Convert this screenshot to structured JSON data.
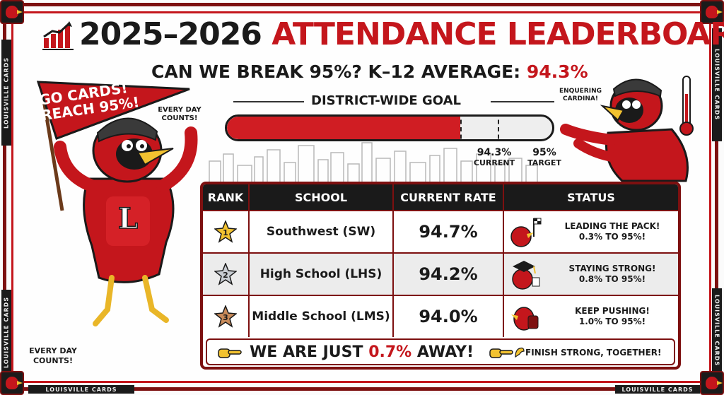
{
  "header": {
    "title_year": "2025–2026",
    "title_main": "ATTENDANCE LEADERBOARD",
    "subtitle_prefix": "CAN WE BREAK 95%? K–12 AVERAGE:",
    "subtitle_value": "94.3%"
  },
  "goal": {
    "title": "DISTRICT-WIDE GOAL",
    "current_value": "94.3%",
    "current_label": "CURRENT",
    "target_value": "95%",
    "target_label": "TARGET",
    "current_fraction": 0.943,
    "target_fraction": 0.95
  },
  "pennant": {
    "line1": "GO CARDS!",
    "line2": "REACH 95%!"
  },
  "bubbles": {
    "every_day_top": "EVERY DAY\nCOUNTS!",
    "every_day_bottom": "EVERY DAY\nCOUNTS!",
    "right_mascot": "ENQUERING\nCARDINA!"
  },
  "mascot": {
    "chest_letter": "L"
  },
  "brand": {
    "side_band": "LOUISVILLE CARDS"
  },
  "table": {
    "headers": [
      "RANK",
      "SCHOOL",
      "CURRENT RATE",
      "STATUS"
    ],
    "rows": [
      {
        "rank": "1",
        "school": "Southwest (SW)",
        "rate": "94.7%",
        "status_line1": "LEADING THE PACK!",
        "status_line2": "0.3% TO 95%!",
        "badge": "gold-star",
        "icon": "checkered-flag-cardinal-icon"
      },
      {
        "rank": "2",
        "school": "High School (LHS)",
        "rate": "94.2%",
        "status_line1": "STAYING STRONG!",
        "status_line2": "0.8% TO 95%!",
        "badge": "silver-star",
        "icon": "graduation-cardinal-icon"
      },
      {
        "rank": "3",
        "school": "Middle School (LMS)",
        "rate": "94.0%",
        "status_line1": "KEEP PUSHING!",
        "status_line2": "1.0% TO 95%!",
        "badge": "bronze-star",
        "icon": "backpack-cardinal-icon"
      }
    ]
  },
  "footer": {
    "main_prefix": "WE ARE JUST",
    "main_value": "0.7%",
    "main_suffix": "AWAY!",
    "side": "FINISH STRONG, TOGETHER!"
  },
  "colors": {
    "accent_red": "#c4161c",
    "dark_red": "#7d1010",
    "ink": "#1a1a1a",
    "gold": "#f2c230",
    "silver": "#c8ccd2",
    "bronze": "#c98b5a"
  }
}
